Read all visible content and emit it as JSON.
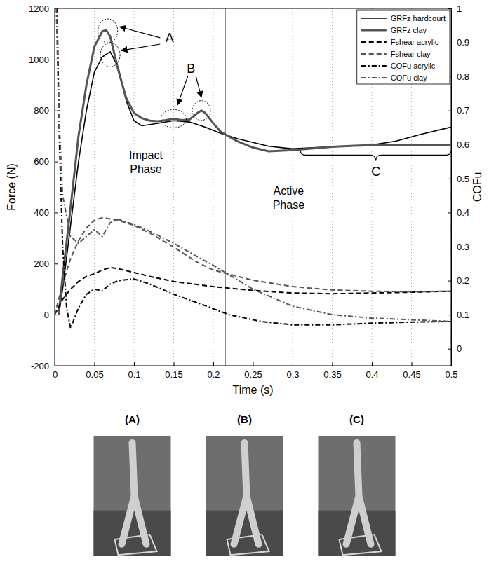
{
  "chart_data": {
    "type": "line",
    "x_label": "Time (s)",
    "y_label": "Force (N)",
    "y2_label": "COFu",
    "xlim": [
      0,
      0.5
    ],
    "xticks": [
      0,
      0.05,
      0.1,
      0.15,
      0.2,
      0.25,
      0.3,
      0.35,
      0.4,
      0.45,
      0.5
    ],
    "ylim": [
      -200,
      1200
    ],
    "yticks": [
      -200,
      0,
      200,
      400,
      600,
      800,
      1000,
      1200
    ],
    "y2lim": [
      -0.05,
      1
    ],
    "y2ticks": [
      0,
      0.1,
      0.2,
      0.3,
      0.4,
      0.5,
      0.6,
      0.7,
      0.8,
      0.9,
      1
    ],
    "grid": "x",
    "legend": "top-right",
    "phase_boundary": 0.215,
    "annotations": [
      "A",
      "B",
      "C",
      "Impact Phase",
      "Active Phase"
    ],
    "series": [
      {
        "name": "GRFz hardcourt",
        "color": "#000000",
        "line_style": "solid",
        "x": [
          0.005,
          0.01,
          0.02,
          0.03,
          0.04,
          0.05,
          0.06,
          0.07,
          0.08,
          0.09,
          0.1,
          0.11,
          0.12,
          0.13,
          0.15,
          0.17,
          0.19,
          0.21,
          0.23,
          0.25,
          0.27,
          0.3,
          0.33,
          0.36,
          0.4,
          0.43,
          0.46,
          0.5
        ],
        "values": [
          0,
          100,
          350,
          600,
          800,
          950,
          1010,
          1030,
          970,
          840,
          760,
          740,
          745,
          750,
          760,
          755,
          735,
          710,
          690,
          675,
          660,
          650,
          655,
          660,
          665,
          680,
          705,
          735
        ]
      },
      {
        "name": "GRFz clay",
        "color": "#555555",
        "line_style": "solid",
        "x": [
          0.005,
          0.01,
          0.02,
          0.03,
          0.04,
          0.05,
          0.06,
          0.065,
          0.07,
          0.08,
          0.09,
          0.1,
          0.11,
          0.12,
          0.13,
          0.14,
          0.15,
          0.16,
          0.17,
          0.18,
          0.185,
          0.19,
          0.2,
          0.21,
          0.23,
          0.25,
          0.27,
          0.3,
          0.35,
          0.4,
          0.45,
          0.5
        ],
        "values": [
          0,
          150,
          420,
          700,
          900,
          1050,
          1110,
          1115,
          1090,
          960,
          850,
          790,
          770,
          760,
          758,
          762,
          768,
          762,
          765,
          790,
          800,
          790,
          750,
          715,
          680,
          655,
          640,
          645,
          658,
          665,
          665,
          665
        ]
      },
      {
        "name": "Fshear acrylic",
        "color": "#000000",
        "line_style": "dashed",
        "x": [
          0,
          0.01,
          0.02,
          0.03,
          0.04,
          0.05,
          0.06,
          0.07,
          0.08,
          0.1,
          0.12,
          0.15,
          0.2,
          0.25,
          0.3,
          0.35,
          0.4,
          0.45,
          0.5
        ],
        "values": [
          0,
          60,
          100,
          130,
          150,
          160,
          175,
          185,
          180,
          165,
          150,
          130,
          110,
          95,
          85,
          82,
          85,
          88,
          92
        ]
      },
      {
        "name": "Fshear clay",
        "color": "#555555",
        "line_style": "dashed",
        "x": [
          0,
          0.01,
          0.02,
          0.03,
          0.04,
          0.05,
          0.06,
          0.07,
          0.08,
          0.1,
          0.12,
          0.15,
          0.18,
          0.2,
          0.25,
          0.3,
          0.35,
          0.4,
          0.45,
          0.5
        ],
        "values": [
          0,
          120,
          220,
          290,
          340,
          370,
          380,
          375,
          370,
          350,
          320,
          265,
          205,
          175,
          135,
          110,
          97,
          92,
          90,
          92
        ]
      },
      {
        "name": "COFu acrylic",
        "color": "#000000",
        "line_style": "dash-dot",
        "axis": "y2",
        "x": [
          0.003,
          0.006,
          0.01,
          0.015,
          0.02,
          0.03,
          0.04,
          0.05,
          0.06,
          0.07,
          0.08,
          0.1,
          0.12,
          0.15,
          0.18,
          0.22,
          0.26,
          0.3,
          0.35,
          0.4,
          0.45,
          0.5
        ],
        "values": [
          1.0,
          0.6,
          0.3,
          0.12,
          0.06,
          0.12,
          0.16,
          0.175,
          0.17,
          0.19,
          0.2,
          0.205,
          0.19,
          0.16,
          0.135,
          0.1,
          0.08,
          0.07,
          0.07,
          0.075,
          0.078,
          0.08
        ]
      },
      {
        "name": "COFu clay",
        "color": "#555555",
        "line_style": "dash-dot",
        "axis": "y2",
        "x": [
          0.002,
          0.005,
          0.01,
          0.02,
          0.03,
          0.04,
          0.05,
          0.06,
          0.07,
          0.08,
          0.1,
          0.12,
          0.15,
          0.18,
          0.2,
          0.25,
          0.3,
          0.35,
          0.4,
          0.45,
          0.5
        ],
        "values": [
          1.0,
          0.7,
          0.45,
          0.33,
          0.31,
          0.33,
          0.35,
          0.33,
          0.37,
          0.38,
          0.365,
          0.345,
          0.31,
          0.27,
          0.245,
          0.175,
          0.125,
          0.1,
          0.09,
          0.085,
          0.08
        ]
      }
    ]
  },
  "figure": {
    "photo_labels": [
      "(A)",
      "(B)",
      "(C)"
    ]
  }
}
